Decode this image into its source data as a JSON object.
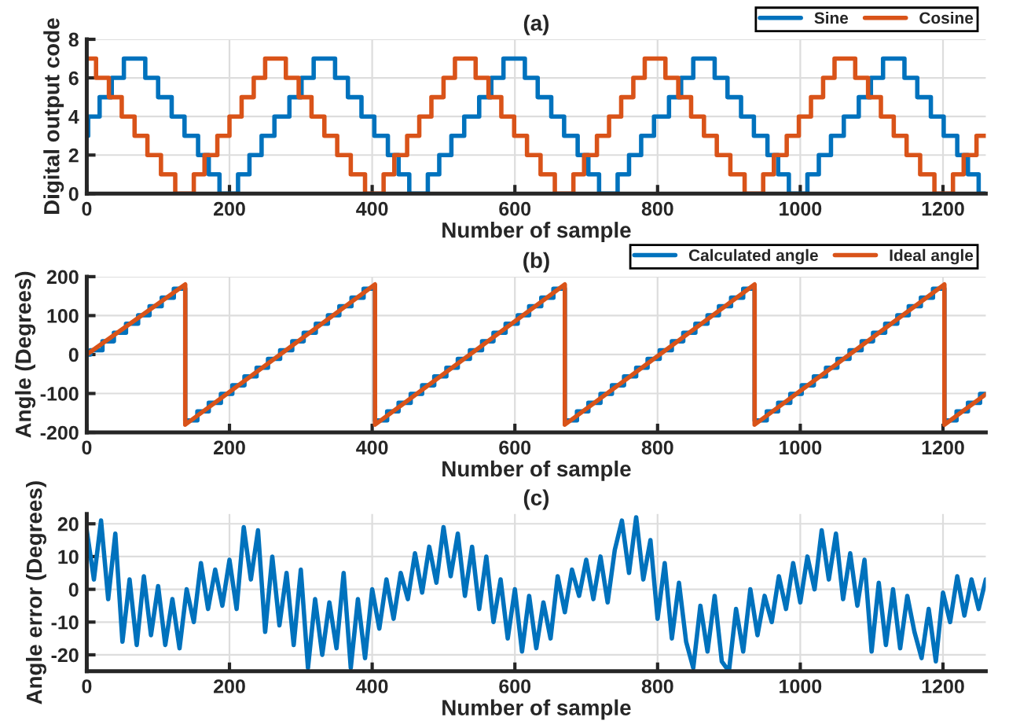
{
  "chart_data": [
    {
      "type": "step",
      "title": "(a)",
      "xlabel": "Number of sample",
      "ylabel": "Digital output code",
      "xlim": [
        0,
        1260
      ],
      "xticks": [
        0,
        200,
        400,
        600,
        800,
        1000,
        1200
      ],
      "ylim": [
        0,
        8
      ],
      "yticks": [
        0,
        2,
        4,
        6,
        8
      ],
      "grid": true,
      "legend": "top right",
      "series": [
        {
          "name": "Sine",
          "color": "#0072bd",
          "x": [
            0,
            2,
            18,
            35,
            52,
            82,
            100,
            119,
            137,
            156,
            171,
            186,
            212,
            228,
            245,
            263,
            284,
            301,
            318,
            348,
            366,
            385,
            403,
            422,
            437,
            452,
            478,
            494,
            511,
            529,
            550,
            567,
            584,
            614,
            632,
            651,
            669,
            688,
            703,
            718,
            744,
            760,
            777,
            795,
            816,
            833,
            850,
            880,
            898,
            917,
            935,
            954,
            969,
            984,
            1010,
            1026,
            1043,
            1061,
            1082,
            1099,
            1116,
            1146,
            1164,
            1183,
            1201,
            1220,
            1235,
            1250,
            1260
          ],
          "values": [
            3,
            4,
            5,
            6,
            7,
            6,
            5,
            4,
            3,
            2,
            1,
            0,
            1,
            2,
            3,
            4,
            5,
            6,
            7,
            6,
            5,
            4,
            3,
            2,
            1,
            0,
            1,
            2,
            3,
            4,
            5,
            6,
            7,
            6,
            5,
            4,
            3,
            2,
            1,
            0,
            1,
            2,
            3,
            4,
            5,
            6,
            7,
            6,
            5,
            4,
            3,
            2,
            1,
            0,
            1,
            2,
            3,
            4,
            5,
            6,
            7,
            6,
            5,
            4,
            3,
            2,
            1,
            0,
            0
          ]
        },
        {
          "name": "Cosine",
          "color": "#d95319",
          "x": [
            0,
            13,
            31,
            49,
            67,
            85,
            104,
            124,
            150,
            165,
            183,
            200,
            217,
            234,
            250,
            279,
            297,
            315,
            333,
            351,
            370,
            390,
            416,
            431,
            449,
            466,
            483,
            500,
            516,
            545,
            563,
            581,
            599,
            617,
            636,
            656,
            682,
            697,
            715,
            732,
            749,
            766,
            782,
            811,
            829,
            847,
            865,
            883,
            902,
            922,
            948,
            963,
            981,
            998,
            1015,
            1032,
            1048,
            1077,
            1095,
            1113,
            1131,
            1149,
            1168,
            1188,
            1214,
            1229,
            1247,
            1260
          ],
          "values": [
            7,
            6,
            5,
            4,
            3,
            2,
            1,
            0,
            1,
            2,
            3,
            4,
            5,
            6,
            7,
            6,
            5,
            4,
            3,
            2,
            1,
            0,
            1,
            2,
            3,
            4,
            5,
            6,
            7,
            6,
            5,
            4,
            3,
            2,
            1,
            0,
            1,
            2,
            3,
            4,
            5,
            6,
            7,
            6,
            5,
            4,
            3,
            2,
            1,
            0,
            1,
            2,
            3,
            4,
            5,
            6,
            7,
            6,
            5,
            4,
            3,
            2,
            1,
            0,
            1,
            2,
            3,
            3
          ]
        }
      ]
    },
    {
      "type": "line",
      "title": "(b)",
      "xlabel": "Number of sample",
      "ylabel": "Angle (Degrees)",
      "xlim": [
        0,
        1260
      ],
      "xticks": [
        0,
        200,
        400,
        600,
        800,
        1000,
        1200
      ],
      "ylim": [
        -200,
        200
      ],
      "yticks": [
        -200,
        -100,
        0,
        100,
        200
      ],
      "grid": true,
      "legend": "top right",
      "series": [
        {
          "name": "Calculated angle",
          "type": "step",
          "color": "#0072bd",
          "x": [
            0,
            5,
            22,
            38,
            55,
            72,
            88,
            105,
            122,
            138,
            155,
            171,
            188,
            204,
            221,
            238,
            254,
            271,
            288,
            304,
            321,
            338,
            354,
            371,
            388,
            404,
            421,
            437,
            454,
            470,
            487,
            504,
            520,
            537,
            554,
            570,
            587,
            604,
            620,
            637,
            654,
            670,
            687,
            703,
            720,
            736,
            753,
            770,
            786,
            803,
            820,
            836,
            853,
            870,
            886,
            903,
            920,
            936,
            953,
            969,
            986,
            1002,
            1019,
            1036,
            1052,
            1069,
            1086,
            1102,
            1119,
            1136,
            1152,
            1169,
            1186,
            1202,
            1219,
            1235,
            1252,
            1260
          ],
          "values": [
            0,
            11,
            34,
            56,
            79,
            101,
            124,
            146,
            169,
            -169,
            -146,
            -124,
            -101,
            -79,
            -56,
            -34,
            -11,
            11,
            34,
            56,
            79,
            101,
            124,
            146,
            169,
            -169,
            -146,
            -124,
            -101,
            -79,
            -56,
            -34,
            -11,
            11,
            34,
            56,
            79,
            101,
            124,
            146,
            169,
            -169,
            -146,
            -124,
            -101,
            -79,
            -56,
            -34,
            -11,
            11,
            34,
            56,
            79,
            101,
            124,
            146,
            169,
            -169,
            -146,
            -124,
            -101,
            -79,
            -56,
            -34,
            -11,
            11,
            34,
            56,
            79,
            101,
            124,
            146,
            169,
            -169,
            -146,
            -124,
            -101,
            -101
          ]
        },
        {
          "name": "Ideal angle",
          "color": "#d95319",
          "x": [
            0,
            138,
            138,
            404,
            404,
            670,
            670,
            936,
            936,
            1202,
            1202,
            1260
          ],
          "values": [
            0,
            180,
            -180,
            180,
            -180,
            180,
            -180,
            180,
            -180,
            180,
            -180,
            -102
          ]
        }
      ]
    },
    {
      "type": "line",
      "title": "(c)",
      "xlabel": "Number of sample",
      "ylabel": "Angle error (Degrees)",
      "xlim": [
        0,
        1260
      ],
      "xticks": [
        0,
        200,
        400,
        600,
        800,
        1000,
        1200
      ],
      "ylim": [
        -25,
        23
      ],
      "yticks": [
        -20,
        -10,
        0,
        10,
        20
      ],
      "grid": true,
      "series": [
        {
          "color": "#0072bd",
          "x": [
            0,
            10,
            20,
            30,
            40,
            50,
            60,
            70,
            80,
            90,
            100,
            110,
            120,
            130,
            140,
            150,
            160,
            170,
            180,
            190,
            200,
            210,
            220,
            230,
            240,
            250,
            260,
            270,
            280,
            290,
            300,
            310,
            320,
            330,
            340,
            350,
            360,
            370,
            380,
            390,
            400,
            410,
            420,
            430,
            440,
            450,
            460,
            470,
            480,
            490,
            500,
            510,
            520,
            530,
            540,
            550,
            560,
            570,
            580,
            590,
            600,
            610,
            620,
            630,
            640,
            650,
            660,
            670,
            680,
            690,
            700,
            710,
            720,
            730,
            740,
            750,
            760,
            770,
            780,
            790,
            800,
            810,
            820,
            830,
            840,
            850,
            860,
            870,
            880,
            890,
            900,
            910,
            920,
            930,
            940,
            950,
            960,
            970,
            980,
            990,
            1000,
            1010,
            1020,
            1030,
            1040,
            1050,
            1060,
            1070,
            1080,
            1090,
            1100,
            1110,
            1120,
            1130,
            1140,
            1150,
            1160,
            1170,
            1180,
            1190,
            1200,
            1210,
            1220,
            1230,
            1240,
            1250,
            1260
          ],
          "values": [
            18,
            3,
            21,
            -3,
            17,
            -16,
            3,
            -17,
            4,
            -14,
            1,
            -17,
            -3,
            -18,
            0,
            -10,
            8,
            -6,
            6,
            -5,
            9,
            -6,
            19,
            3,
            18,
            -13,
            10,
            -11,
            5,
            -17,
            6,
            -24,
            -3,
            -20,
            -4,
            -18,
            5,
            -24,
            -3,
            -21,
            0,
            -12,
            3,
            -9,
            5,
            -3,
            11,
            -1,
            13,
            2,
            19,
            4,
            17,
            -2,
            13,
            -6,
            10,
            -10,
            3,
            -15,
            0,
            -19,
            -2,
            -18,
            -4,
            -15,
            4,
            -7,
            6,
            -2,
            9,
            -3,
            10,
            -4,
            12,
            21,
            5,
            22,
            3,
            15,
            -9,
            8,
            -15,
            2,
            -16,
            -24,
            -5,
            -19,
            -2,
            -22,
            -25,
            -6,
            -19,
            0,
            -14,
            -2,
            -10,
            4,
            -6,
            8,
            -4,
            10,
            0,
            18,
            3,
            17,
            -3,
            11,
            -5,
            9,
            -19,
            2,
            -17,
            0,
            -18,
            -2,
            -13,
            -21,
            -6,
            -22,
            -1,
            -10,
            4,
            -8,
            3,
            -6,
            3
          ]
        }
      ]
    }
  ]
}
